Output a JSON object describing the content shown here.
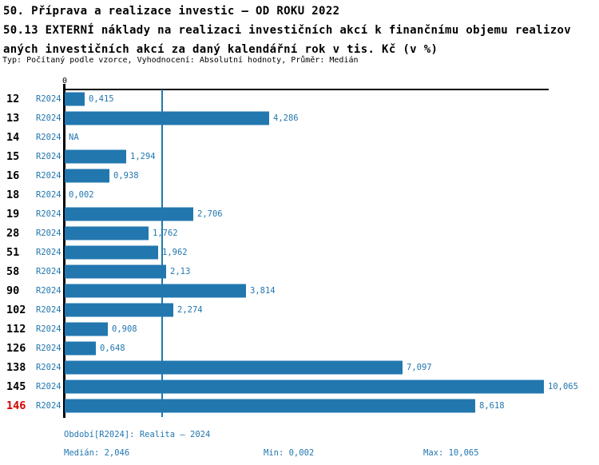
{
  "header": {
    "title_line1": "50. Příprava a realizace investic – OD ROKU 2022",
    "title_line2": "50.13 EXTERNÍ náklady na realizaci investičních akcí k finančnímu objemu realizov",
    "title_line3": "aných investičních akcí za daný kalendářní rok v tis. Kč (v %)",
    "meta": "Typ: Počítaný podle vzorce, Vyhodnocení: Absolutní hodnoty, Průměr: Medián"
  },
  "chart_data": {
    "type": "bar",
    "orientation": "horizontal",
    "axis_zero_label": "0",
    "series_label": "R2024",
    "categories": [
      "12",
      "13",
      "14",
      "15",
      "16",
      "18",
      "19",
      "28",
      "51",
      "58",
      "90",
      "102",
      "112",
      "126",
      "138",
      "145",
      "146"
    ],
    "values": [
      0.415,
      4.286,
      null,
      1.294,
      0.938,
      0.002,
      2.706,
      1.762,
      1.962,
      2.13,
      3.814,
      2.274,
      0.908,
      0.648,
      7.097,
      10.065,
      8.618
    ],
    "value_labels": [
      "0,415",
      "4,286",
      "NA",
      "1,294",
      "0,938",
      "0,002",
      "2,706",
      "1,762",
      "1,962",
      "2,13",
      "3,814",
      "2,274",
      "0,908",
      "0,648",
      "7,097",
      "10,065",
      "8,618"
    ],
    "highlighted_category": "146",
    "median": 2.046,
    "xlim": [
      0,
      10.18
    ],
    "grid": false,
    "legend": "none",
    "colors": {
      "bar": "#2277af",
      "median_line": "#2277af",
      "labels": "#2277af",
      "highlight": "#d40000",
      "axis": "#000000"
    }
  },
  "footer": {
    "period": "Období[R2024]: Realita – 2024",
    "median": "Medián: 2,046",
    "min": "Min: 0,002",
    "max": "Max: 10,065"
  }
}
